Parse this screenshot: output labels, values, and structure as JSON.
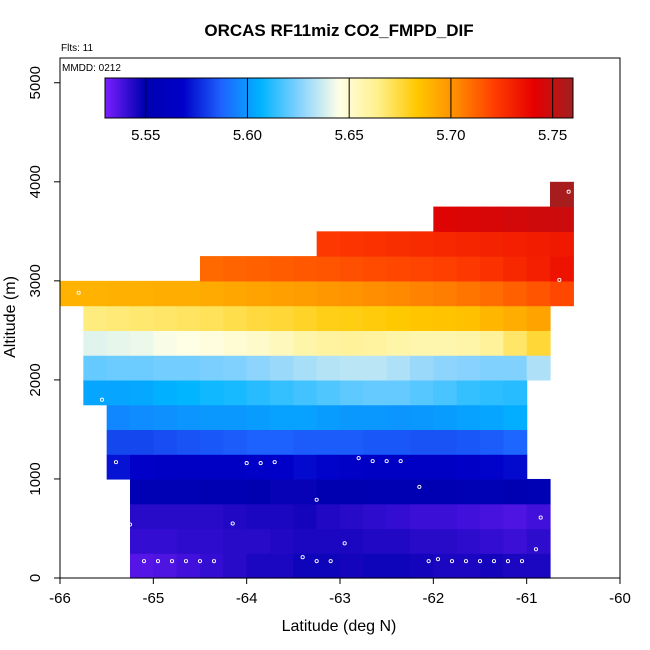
{
  "chart_data": {
    "type": "heatmap",
    "title": "ORCAS RF11miz CO2_FMPD_DIF",
    "xlabel": "Latitude (deg N)",
    "ylabel": "Altitude (m)",
    "xlim": [
      -66,
      -60
    ],
    "ylim": [
      0,
      5250
    ],
    "x_ticks": [
      -66,
      -65,
      -64,
      -63,
      -62,
      -61,
      -60
    ],
    "x_tick_labels": [
      "-66",
      "-65",
      "-64",
      "-63",
      "-62",
      "-61",
      "-60"
    ],
    "y_ticks": [
      0,
      1000,
      2000,
      3000,
      4000,
      5000
    ],
    "y_tick_labels": [
      "0",
      "1000",
      "2000",
      "3000",
      "4000",
      "5000"
    ],
    "annotations": {
      "flights": "Flts: 11",
      "date": "MMDD: 0212"
    },
    "colorbar": {
      "range": [
        5.53,
        5.76
      ],
      "ticks": [
        5.55,
        5.6,
        5.65,
        5.7,
        5.75
      ],
      "tick_labels": [
        "5.55",
        "5.60",
        "5.65",
        "5.70",
        "5.75"
      ],
      "stops": [
        "#7b1fff",
        "#0000b0",
        "#0000c8",
        "#1e64ff",
        "#00b4ff",
        "#87d2ff",
        "#ffffe6",
        "#fff08c",
        "#ffc800",
        "#ff8c00",
        "#ff3c00",
        "#e60000",
        "#a02020"
      ]
    },
    "cell_width_deg": 0.25,
    "rows": [
      {
        "bottom": 0,
        "top": 250,
        "x_start": -65.25,
        "values": [
          5.536,
          5.537,
          5.539,
          5.541,
          5.543,
          5.545,
          5.545,
          5.547,
          5.547,
          5.546,
          5.547,
          5.547,
          5.546,
          5.545,
          5.545,
          5.546,
          5.545,
          5.545
        ]
      },
      {
        "bottom": 250,
        "top": 500,
        "x_start": -65.25,
        "values": [
          5.541,
          5.541,
          5.542,
          5.542,
          5.543,
          5.543,
          5.544,
          5.545,
          5.545,
          5.545,
          5.544,
          5.544,
          5.543,
          5.543,
          5.542,
          5.541,
          5.54,
          5.542
        ]
      },
      {
        "bottom": 500,
        "top": 750,
        "x_start": -65.25,
        "values": [
          5.543,
          5.543,
          5.543,
          5.543,
          5.544,
          5.545,
          5.545,
          5.546,
          5.544,
          5.543,
          5.542,
          5.541,
          5.54,
          5.54,
          5.539,
          5.538,
          5.537,
          5.539
        ]
      },
      {
        "bottom": 750,
        "top": 1000,
        "x_start": -65.25,
        "values": [
          5.552,
          5.553,
          5.552,
          5.551,
          5.551,
          5.549,
          5.548,
          5.548,
          5.549,
          5.55,
          5.551,
          5.551,
          5.551,
          5.551,
          5.552,
          5.552,
          5.551,
          5.552
        ]
      },
      {
        "bottom": 1000,
        "top": 1250,
        "x_start": -65.5,
        "values": [
          5.572,
          5.568,
          5.566,
          5.565,
          5.566,
          5.566,
          5.567,
          5.568,
          5.57,
          5.569,
          5.567,
          5.566,
          5.566,
          5.566,
          5.566,
          5.567,
          5.569,
          5.57
        ]
      },
      {
        "bottom": 1250,
        "top": 1500,
        "x_start": -65.5,
        "values": [
          5.582,
          5.582,
          5.583,
          5.584,
          5.585,
          5.586,
          5.587,
          5.587,
          5.586,
          5.586,
          5.586,
          5.585,
          5.585,
          5.584,
          5.584,
          5.585,
          5.586,
          5.588
        ]
      },
      {
        "bottom": 1500,
        "top": 1750,
        "x_start": -65.5,
        "values": [
          5.596,
          5.597,
          5.598,
          5.599,
          5.6,
          5.6,
          5.601,
          5.602,
          5.602,
          5.601,
          5.6,
          5.6,
          5.599,
          5.6,
          5.601,
          5.602,
          5.603,
          5.605
        ]
      },
      {
        "bottom": 1750,
        "top": 2000,
        "x_start": -65.75,
        "values": [
          5.603,
          5.603,
          5.604,
          5.606,
          5.607,
          5.609,
          5.61,
          5.612,
          5.614,
          5.616,
          5.618,
          5.62,
          5.621,
          5.621,
          5.619,
          5.617,
          5.614,
          5.613,
          5.612
        ]
      },
      {
        "bottom": 2000,
        "top": 2250,
        "x_start": -65.75,
        "values": [
          5.621,
          5.622,
          5.622,
          5.623,
          5.623,
          5.624,
          5.625,
          5.627,
          5.629,
          5.631,
          5.633,
          5.634,
          5.634,
          5.632,
          5.629,
          5.627,
          5.626,
          5.625,
          5.625,
          5.632
        ]
      },
      {
        "bottom": 2250,
        "top": 2500,
        "x_start": -65.75,
        "values": [
          5.64,
          5.641,
          5.642,
          5.644,
          5.645,
          5.647,
          5.649,
          5.651,
          5.654,
          5.658,
          5.66,
          5.661,
          5.66,
          5.658,
          5.657,
          5.657,
          5.658,
          5.661,
          5.669,
          5.676
        ]
      },
      {
        "bottom": 2500,
        "top": 2750,
        "x_start": -65.75,
        "values": [
          5.666,
          5.667,
          5.668,
          5.669,
          5.67,
          5.671,
          5.673,
          5.675,
          5.676,
          5.678,
          5.68,
          5.681,
          5.682,
          5.683,
          5.684,
          5.685,
          5.686,
          5.689,
          5.692,
          5.695
        ]
      },
      {
        "bottom": 2750,
        "top": 3000,
        "x_start": -66.0,
        "values": [
          5.69,
          5.69,
          5.691,
          5.691,
          5.692,
          5.692,
          5.693,
          5.694,
          5.695,
          5.696,
          5.697,
          5.699,
          5.7,
          5.702,
          5.703,
          5.705,
          5.706,
          5.708,
          5.71,
          5.713,
          5.716,
          5.719
        ]
      },
      {
        "bottom": 3000,
        "top": 3250,
        "x_start": -64.5,
        "values": [
          5.711,
          5.712,
          5.713,
          5.714,
          5.715,
          5.716,
          5.717,
          5.718,
          5.719,
          5.72,
          5.721,
          5.723,
          5.725,
          5.728,
          5.731,
          5.735
        ]
      },
      {
        "bottom": 3250,
        "top": 3500,
        "x_start": -63.25,
        "values": [
          5.723,
          5.724,
          5.725,
          5.726,
          5.727,
          5.728,
          5.729,
          5.73,
          5.731,
          5.732,
          5.733
        ]
      },
      {
        "bottom": 3500,
        "top": 3750,
        "x_start": -62.0,
        "values": [
          5.743,
          5.744,
          5.745,
          5.746,
          5.747,
          5.748
        ]
      },
      {
        "bottom": 3750,
        "top": 4000,
        "x_start": -60.75,
        "values": [
          5.758
        ]
      }
    ],
    "points": [
      {
        "x": -65.8,
        "y": 2880
      },
      {
        "x": -65.55,
        "y": 1800
      },
      {
        "x": -65.4,
        "y": 1170
      },
      {
        "x": -65.25,
        "y": 540
      },
      {
        "x": -65.1,
        "y": 170
      },
      {
        "x": -64.95,
        "y": 170
      },
      {
        "x": -64.8,
        "y": 170
      },
      {
        "x": -64.65,
        "y": 170
      },
      {
        "x": -64.5,
        "y": 170
      },
      {
        "x": -64.35,
        "y": 170
      },
      {
        "x": -64.15,
        "y": 550
      },
      {
        "x": -64.0,
        "y": 1160
      },
      {
        "x": -63.85,
        "y": 1160
      },
      {
        "x": -63.7,
        "y": 1170
      },
      {
        "x": -63.4,
        "y": 210
      },
      {
        "x": -63.25,
        "y": 790
      },
      {
        "x": -63.25,
        "y": 170
      },
      {
        "x": -63.1,
        "y": 170
      },
      {
        "x": -62.95,
        "y": 350
      },
      {
        "x": -62.8,
        "y": 1210
      },
      {
        "x": -62.65,
        "y": 1180
      },
      {
        "x": -62.5,
        "y": 1180
      },
      {
        "x": -62.35,
        "y": 1180
      },
      {
        "x": -62.15,
        "y": 920
      },
      {
        "x": -62.05,
        "y": 170
      },
      {
        "x": -61.95,
        "y": 190
      },
      {
        "x": -61.8,
        "y": 170
      },
      {
        "x": -61.65,
        "y": 170
      },
      {
        "x": -61.5,
        "y": 170
      },
      {
        "x": -61.35,
        "y": 170
      },
      {
        "x": -61.2,
        "y": 170
      },
      {
        "x": -61.05,
        "y": 170
      },
      {
        "x": -60.9,
        "y": 290
      },
      {
        "x": -60.85,
        "y": 610
      },
      {
        "x": -60.75,
        "y": 1260
      },
      {
        "x": -60.65,
        "y": 3010
      },
      {
        "x": -60.55,
        "y": 3900
      }
    ]
  }
}
